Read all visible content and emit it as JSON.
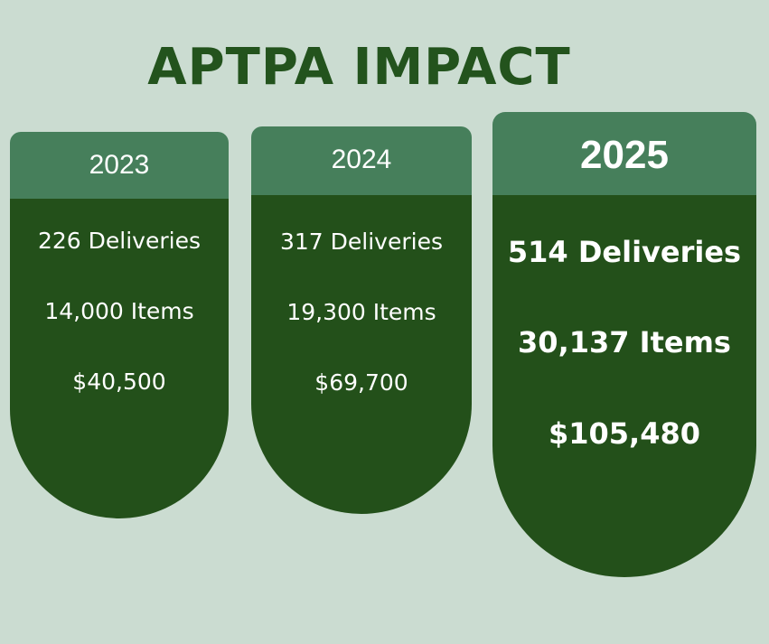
{
  "title": "APTPA IMPACT",
  "colors": {
    "background": "#cbdcd1",
    "title": "#23531d",
    "header": "#467f5b",
    "body": "#23501a",
    "text": "#ffffff"
  },
  "cards": [
    {
      "year": "2023",
      "deliveries": "226 Deliveries",
      "items": "14,000 Items",
      "amount": "$40,500"
    },
    {
      "year": "2024",
      "deliveries": "317 Deliveries",
      "items": "19,300 Items",
      "amount": "$69,700"
    },
    {
      "year": "2025",
      "deliveries": "514 Deliveries",
      "items": "30,137 Items",
      "amount": "$105,480"
    }
  ]
}
